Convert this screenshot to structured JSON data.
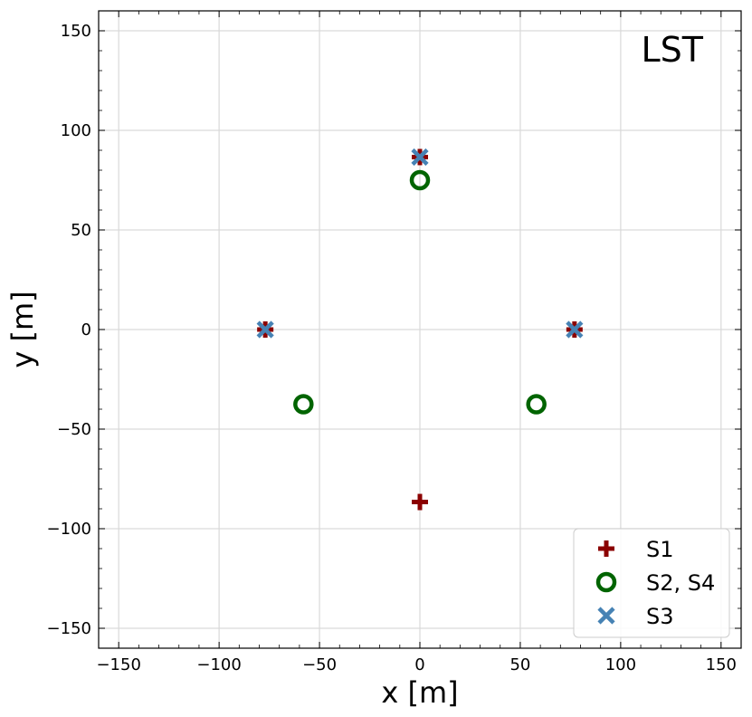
{
  "chart_data": {
    "type": "scatter",
    "title": "",
    "annotation": "LST",
    "xlabel": "x [m]",
    "ylabel": "y [m]",
    "xlim": [
      -160,
      160
    ],
    "ylim": [
      -160,
      160
    ],
    "xticks": [
      -150,
      -100,
      -50,
      0,
      50,
      100,
      150
    ],
    "yticks": [
      -150,
      -100,
      -50,
      0,
      50,
      100,
      150
    ],
    "xtick_labels": [
      "−150",
      "−100",
      "−50",
      "0",
      "50",
      "100",
      "150"
    ],
    "ytick_labels": [
      "−150",
      "−100",
      "−50",
      "0",
      "50",
      "100",
      "150"
    ],
    "grid": true,
    "legend_position": "lower-right",
    "series": [
      {
        "name": "S1",
        "marker": "plus",
        "color": "#8b0000",
        "points": [
          [
            0,
            86.6
          ],
          [
            -77,
            0
          ],
          [
            77,
            0
          ],
          [
            0,
            -86.6
          ]
        ]
      },
      {
        "name": "S2, S4",
        "marker": "circle",
        "color": "#006400",
        "points": [
          [
            0,
            75
          ],
          [
            -58,
            -37.5
          ],
          [
            58,
            -37.5
          ]
        ]
      },
      {
        "name": "S3",
        "marker": "x",
        "color": "#4682b4",
        "points": [
          [
            0,
            86.6
          ],
          [
            -77,
            0
          ],
          [
            77,
            0
          ]
        ]
      }
    ]
  }
}
